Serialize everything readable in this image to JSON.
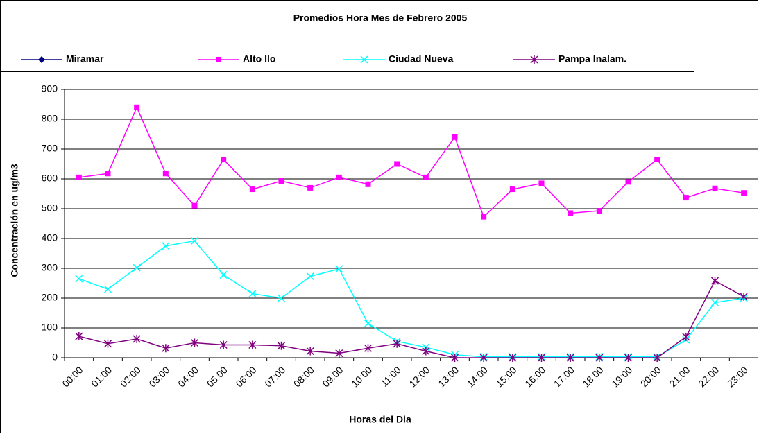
{
  "chart_data": {
    "type": "line",
    "title": "Promedios Hora Mes de Febrero 2005",
    "x_label": "Horas del Dia",
    "y_label": "Concentración en ug/m3",
    "categories": [
      "00:00",
      "01:00",
      "02:00",
      "03:00",
      "04:00",
      "05:00",
      "06:00",
      "07:00",
      "08:00",
      "09:00",
      "10:00",
      "11:00",
      "12:00",
      "13:00",
      "14:00",
      "15:00",
      "16:00",
      "17:00",
      "18:00",
      "19:00",
      "20:00",
      "21:00",
      "22:00",
      "23:00"
    ],
    "series": [
      {
        "name": "Miramar",
        "color": "#000080",
        "marker": "diamond",
        "values": [
          null,
          null,
          null,
          null,
          null,
          null,
          null,
          null,
          null,
          null,
          null,
          null,
          null,
          null,
          null,
          null,
          null,
          null,
          null,
          null,
          null,
          null,
          null,
          null
        ]
      },
      {
        "name": "Alto Ilo",
        "color": "#ff00ff",
        "marker": "square",
        "values": [
          605,
          618,
          840,
          618,
          510,
          665,
          565,
          593,
          570,
          605,
          582,
          650,
          605,
          740,
          473,
          565,
          585,
          485,
          493,
          590,
          665,
          537,
          568,
          553
        ]
      },
      {
        "name": "Ciudad Nueva",
        "color": "#00ffff",
        "marker": "x",
        "values": [
          265,
          230,
          302,
          375,
          392,
          278,
          215,
          200,
          273,
          298,
          115,
          55,
          35,
          10,
          3,
          3,
          3,
          3,
          3,
          3,
          3,
          60,
          185,
          200
        ]
      },
      {
        "name": "Pampa Inalam.",
        "color": "#800080",
        "marker": "star",
        "values": [
          72,
          47,
          63,
          32,
          50,
          43,
          43,
          40,
          22,
          15,
          32,
          47,
          22,
          0,
          0,
          0,
          0,
          0,
          0,
          0,
          0,
          70,
          258,
          205
        ]
      }
    ],
    "ylim": [
      0,
      900
    ],
    "yticks": [
      0,
      100,
      200,
      300,
      400,
      500,
      600,
      700,
      800,
      900
    ],
    "grid": true
  }
}
